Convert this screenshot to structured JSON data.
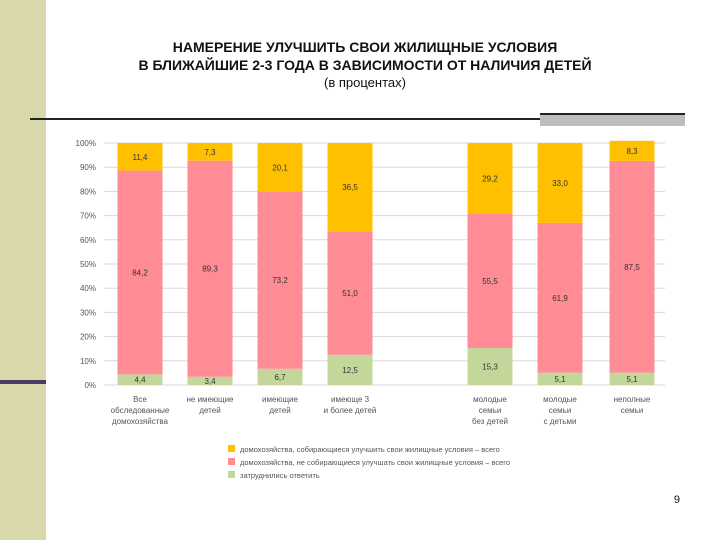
{
  "slide": {
    "title_line1": "НАМЕРЕНИЕ УЛУЧШИТЬ СВОИ ЖИЛИЩНЫЕ УСЛОВИЯ",
    "title_line2": "В БЛИЖАЙШИЕ 2-3 ГОДА В ЗАВИСИМОСТИ ОТ НАЛИЧИЯ ДЕТЕЙ",
    "subtitle": "(в процентах)",
    "page_number": "9"
  },
  "colors": {
    "yes": "#ffc000",
    "no": "#ff8b94",
    "hard": "#c4d79b",
    "grid": "#d9d9d9",
    "axis_text": "#555555"
  },
  "chart_data": {
    "type": "bar",
    "stacked": true,
    "ylim": [
      0,
      100
    ],
    "yticks": [
      "0%",
      "10%",
      "20%",
      "30%",
      "40%",
      "50%",
      "60%",
      "70%",
      "80%",
      "90%",
      "100%"
    ],
    "categories": [
      [
        "Все",
        "обследованные",
        "домохозяйства"
      ],
      [
        "не имеющие",
        "детей"
      ],
      [
        "имеющие",
        "детей"
      ],
      [
        "имеюще 3",
        "и более детей"
      ],
      [
        "молодые",
        "семьи",
        "без детей"
      ],
      [
        "молодые",
        "семьи",
        "с детьми"
      ],
      [
        "неполные",
        "семьи"
      ]
    ],
    "series": [
      {
        "name": "затруднились ответить",
        "key": "hard",
        "values": [
          4.4,
          3.4,
          6.7,
          12.5,
          15.3,
          5.1,
          5.1
        ],
        "labels": [
          "4,4",
          "3,4",
          "6,7",
          "12,5",
          "15,3",
          "5,1",
          "5,1"
        ]
      },
      {
        "name": "домохозяйства, не собирающиеся улучшать свои жилищные условия – всего",
        "key": "no",
        "values": [
          84.2,
          89.3,
          73.2,
          51.0,
          55.5,
          61.9,
          87.5
        ],
        "labels": [
          "84,2",
          "89,3",
          "73,2",
          "51,0",
          "55,5",
          "61,9",
          "87,5"
        ]
      },
      {
        "name": "домохозяйства, собирающиеся улучшить свои жилищные условия – всего",
        "key": "yes",
        "values": [
          11.4,
          7.3,
          20.1,
          36.5,
          29.2,
          33.0,
          8.3
        ],
        "labels": [
          "11,4",
          "7,3",
          "20,1",
          "36,5",
          "29,2",
          "33,0",
          "8,3"
        ]
      }
    ],
    "legend": [
      {
        "key": "yes",
        "label": "домохозяйства, собирающиеся улучшить свои жилищные условия – всего"
      },
      {
        "key": "no",
        "label": "домохозяйства, не собирающиеся улучшать свои жилищные условия – всего"
      },
      {
        "key": "hard",
        "label": "затруднились ответить"
      }
    ],
    "legend_position": "bottom",
    "grid": true
  }
}
